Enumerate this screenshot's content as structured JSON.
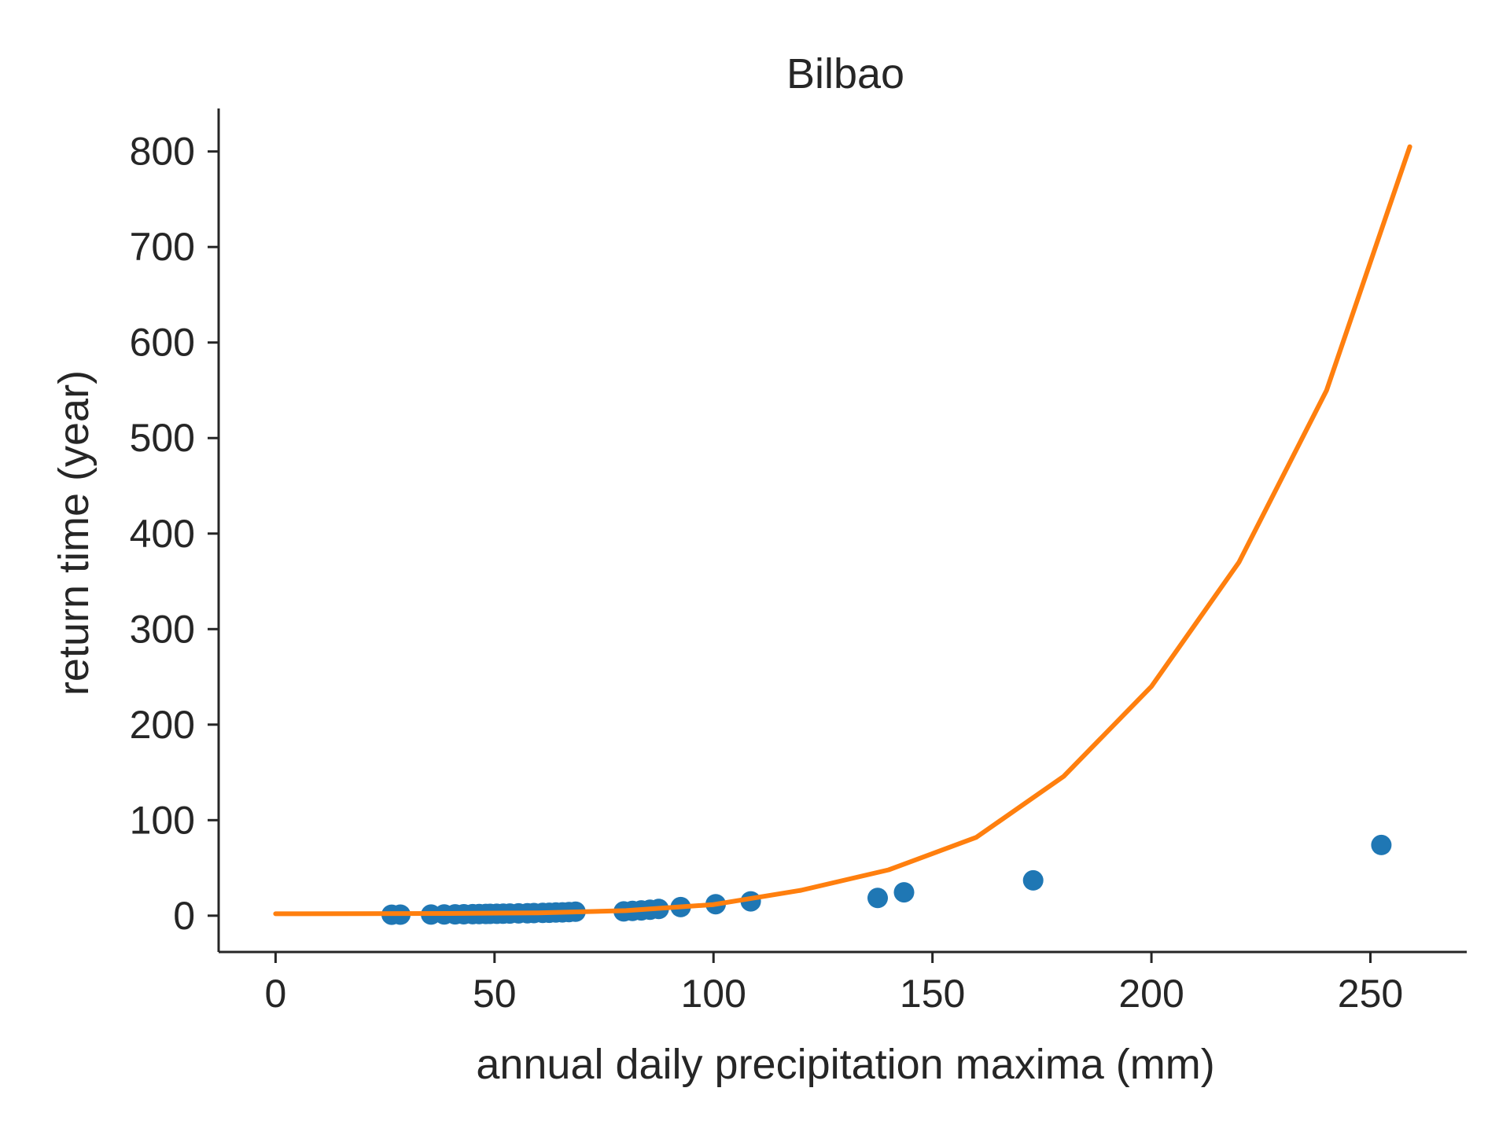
{
  "chart_data": {
    "type": "scatter",
    "title": "Bilbao",
    "xlabel": "annual daily precipitation maxima (mm)",
    "ylabel": "return time (year)",
    "xlim": [
      -13,
      272
    ],
    "ylim": [
      -38,
      845
    ],
    "xticks": [
      0,
      50,
      100,
      150,
      200,
      250
    ],
    "yticks": [
      0,
      100,
      200,
      300,
      400,
      500,
      600,
      700,
      800
    ],
    "grid": false,
    "colors": {
      "points": "#1f77b4",
      "curve": "#ff7f0e",
      "axes": "#262626"
    },
    "series": [
      {
        "kind": "scatter",
        "points": [
          [
            26.5,
            1.0
          ],
          [
            28.5,
            1.1
          ],
          [
            35.5,
            1.2
          ],
          [
            38.5,
            1.3
          ],
          [
            41.0,
            1.4
          ],
          [
            43.0,
            1.5
          ],
          [
            45.0,
            1.6
          ],
          [
            46.5,
            1.7
          ],
          [
            48.0,
            1.8
          ],
          [
            49.0,
            1.9
          ],
          [
            50.5,
            2.0
          ],
          [
            52.0,
            2.1
          ],
          [
            53.5,
            2.2
          ],
          [
            55.5,
            2.4
          ],
          [
            57.5,
            2.5
          ],
          [
            59.0,
            2.7
          ],
          [
            61.0,
            2.9
          ],
          [
            62.5,
            3.1
          ],
          [
            64.0,
            3.3
          ],
          [
            65.5,
            3.5
          ],
          [
            67.0,
            3.8
          ],
          [
            68.5,
            4.1
          ],
          [
            79.5,
            4.5
          ],
          [
            81.5,
            5.0
          ],
          [
            83.5,
            5.5
          ],
          [
            85.5,
            6.2
          ],
          [
            87.5,
            7.0
          ],
          [
            92.5,
            9.0
          ],
          [
            100.5,
            12.0
          ],
          [
            108.5,
            15.0
          ],
          [
            137.5,
            18.5
          ],
          [
            143.5,
            24.5
          ],
          [
            173.0,
            37.0
          ],
          [
            252.5,
            74.0
          ]
        ]
      },
      {
        "kind": "line",
        "curve": [
          [
            0,
            2.0
          ],
          [
            20,
            2.1
          ],
          [
            40,
            2.3
          ],
          [
            60,
            3.0
          ],
          [
            80,
            5.3
          ],
          [
            100,
            11.6
          ],
          [
            120,
            26.6
          ],
          [
            140,
            48.0
          ],
          [
            160,
            82.0
          ],
          [
            180,
            146.0
          ],
          [
            200,
            240.0
          ],
          [
            220,
            370.0
          ],
          [
            240,
            550.0
          ],
          [
            259,
            805.0
          ]
        ]
      }
    ]
  }
}
